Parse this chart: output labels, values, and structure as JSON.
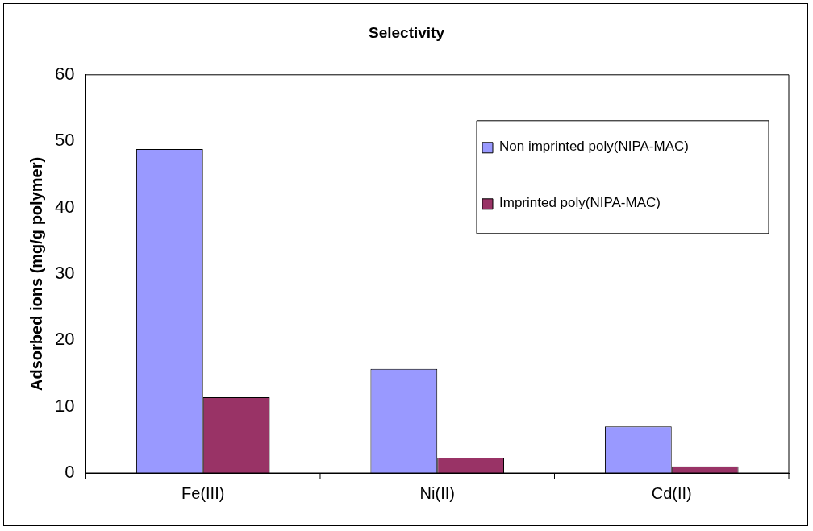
{
  "chart_data": {
    "type": "bar",
    "title": "Selectivity",
    "ylabel": "Adsorbed ions (mg/g polymer)",
    "categories": [
      "Fe(III)",
      "Ni(II)",
      "Cd(II)"
    ],
    "series": [
      {
        "name": "Non imprinted poly(NIPA-MAC)",
        "color": "#9999ff",
        "values": [
          48.8,
          15.7,
          7.0
        ]
      },
      {
        "name": "Imprinted poly(NIPA-MAC)",
        "color": "#993366",
        "values": [
          11.4,
          2.3,
          1.0
        ]
      }
    ],
    "ylim": [
      0,
      60
    ],
    "yticks": [
      0,
      10,
      20,
      30,
      40,
      50,
      60
    ],
    "grid": false,
    "legend": "top right"
  }
}
